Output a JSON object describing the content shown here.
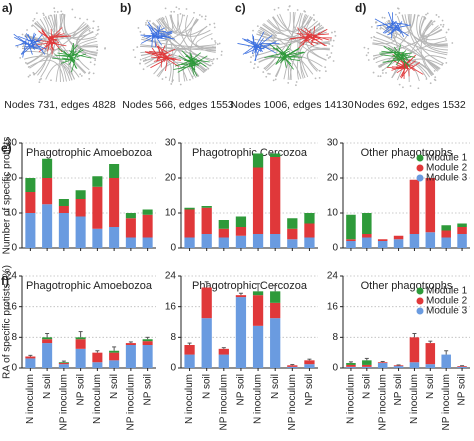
{
  "networks": [
    {
      "panel": "a)",
      "caption": "Nodes 731, edges 4828"
    },
    {
      "panel": "b)",
      "caption": "Nodes 566, edges 1553"
    },
    {
      "panel": "c)",
      "caption": "Nodes 1006, edges 14130"
    },
    {
      "panel": "d)",
      "caption": "Nodes 692, edges 1532"
    }
  ],
  "chart_data": [
    {
      "type": "stacked_bar",
      "panel": "e)",
      "title": "Phagotrophic Amoebozoa",
      "ylabel": "Number of specific protists",
      "series": [
        {
          "color": "#6a9be0",
          "values": [
            10,
            12.5,
            10,
            9,
            5.5,
            6,
            3,
            3
          ]
        },
        {
          "color": "#e0383a",
          "values": [
            6,
            7.5,
            2,
            5,
            12,
            14,
            5.5,
            6.5
          ]
        },
        {
          "color": "#2e9a3a",
          "values": [
            4,
            5.5,
            2,
            2.5,
            3,
            4,
            1.5,
            1.5
          ]
        }
      ],
      "ylim": [
        0,
        30
      ],
      "yticks": [
        0,
        10,
        20,
        30
      ],
      "grid": true
    },
    {
      "type": "stacked_bar",
      "title": "Phagotrophic Cercozoa",
      "series": [
        {
          "color": "#6a9be0",
          "values": [
            3,
            4,
            3,
            3.5,
            4,
            4,
            2.5,
            3
          ]
        },
        {
          "color": "#e0383a",
          "values": [
            8,
            7.5,
            2.5,
            2.5,
            19,
            22,
            3,
            4
          ]
        },
        {
          "color": "#2e9a3a",
          "values": [
            0.5,
            0.5,
            2.5,
            3,
            4,
            1,
            3,
            3
          ]
        }
      ],
      "ylim": [
        0,
        30
      ],
      "yticks": [
        0,
        10,
        20,
        30
      ],
      "grid": true
    },
    {
      "type": "stacked_bar",
      "title": "Other phagotrophs",
      "legend": "upper right",
      "series": [
        {
          "name": "Module 3",
          "color": "#6a9be0",
          "values": [
            2,
            3,
            2,
            2.5,
            4,
            4.5,
            3,
            4
          ]
        },
        {
          "name": "Module 2",
          "color": "#e0383a",
          "values": [
            0.5,
            1,
            0.5,
            1,
            15.5,
            15.5,
            2,
            2
          ]
        },
        {
          "name": "Module 1",
          "color": "#2e9a3a",
          "values": [
            7,
            6,
            0,
            0,
            0,
            0,
            1.5,
            1
          ]
        }
      ],
      "ylim": [
        0,
        30
      ],
      "yticks": [
        0,
        10,
        20,
        30
      ],
      "grid": true
    },
    {
      "type": "stacked_bar",
      "panel": "f)",
      "title": "Phagotrophic Amoebozoa",
      "ylabel": "RA of specific protists (%)",
      "categories": [
        "N inoculum",
        "N soil",
        "NP inoculum",
        "NP soil",
        "N inoculum",
        "N soil",
        "NP inoculum",
        "NP soil"
      ],
      "series": [
        {
          "color": "#6a9be0",
          "values": [
            2.5,
            6.5,
            1,
            5,
            1.5,
            2,
            6,
            6
          ]
        },
        {
          "color": "#e0383a",
          "values": [
            0.5,
            1,
            0.3,
            2.5,
            2.5,
            2,
            0.5,
            1
          ]
        },
        {
          "color": "#2e9a3a",
          "values": [
            0,
            0.5,
            0.2,
            0.5,
            0,
            0.5,
            0,
            0.5
          ]
        }
      ],
      "errors": [
        0.3,
        1,
        0.3,
        1.5,
        0.5,
        1,
        0.3,
        0.5
      ],
      "ylim": [
        0,
        24
      ],
      "yticks": [
        0,
        8,
        16,
        24
      ],
      "grid": true
    },
    {
      "type": "stacked_bar",
      "title": "Phagotrophic Cercozoa",
      "categories": [
        "N inoculum",
        "N soil",
        "NP inoculum",
        "NP soil",
        "N inoculum",
        "N soil",
        "NP inoculum",
        "NP soil"
      ],
      "series": [
        {
          "color": "#6a9be0",
          "values": [
            3.5,
            13,
            3.5,
            18.5,
            11,
            13,
            0.3,
            1
          ]
        },
        {
          "color": "#e0383a",
          "values": [
            2.5,
            8,
            1.5,
            0.5,
            8,
            4,
            0.4,
            1
          ]
        },
        {
          "color": "#2e9a3a",
          "values": [
            0,
            0,
            0,
            0,
            1,
            3,
            0,
            0
          ]
        }
      ],
      "errors": [
        0.5,
        1.5,
        0.3,
        0.5,
        2,
        1.5,
        0.2,
        0.3
      ],
      "ylim": [
        0,
        24
      ],
      "yticks": [
        0,
        8,
        16,
        24
      ],
      "grid": true
    },
    {
      "type": "stacked_bar",
      "title": "Other phagotrophs",
      "legend": "upper right",
      "categories": [
        "N inoculum",
        "N soil",
        "NP inoculum",
        "NP soil",
        "N inoculum",
        "N soil",
        "NP inoculum",
        "NP soil"
      ],
      "series": [
        {
          "name": "Module 3",
          "color": "#6a9be0",
          "values": [
            0.3,
            0.3,
            1.3,
            0.5,
            1.5,
            1,
            3.5,
            0.3
          ]
        },
        {
          "name": "Module 2",
          "color": "#e0383a",
          "values": [
            0.5,
            0.5,
            0.2,
            0.2,
            6.5,
            5.5,
            0,
            0.2
          ]
        },
        {
          "name": "Module 1",
          "color": "#2e9a3a",
          "values": [
            0.5,
            1.2,
            0,
            0,
            0,
            0,
            0,
            0
          ]
        }
      ],
      "errors": [
        0.3,
        0.5,
        0.2,
        0.1,
        1,
        0.5,
        1,
        0.1
      ],
      "ylim": [
        0,
        24
      ],
      "yticks": [
        0,
        8,
        16,
        24
      ],
      "grid": true
    }
  ]
}
